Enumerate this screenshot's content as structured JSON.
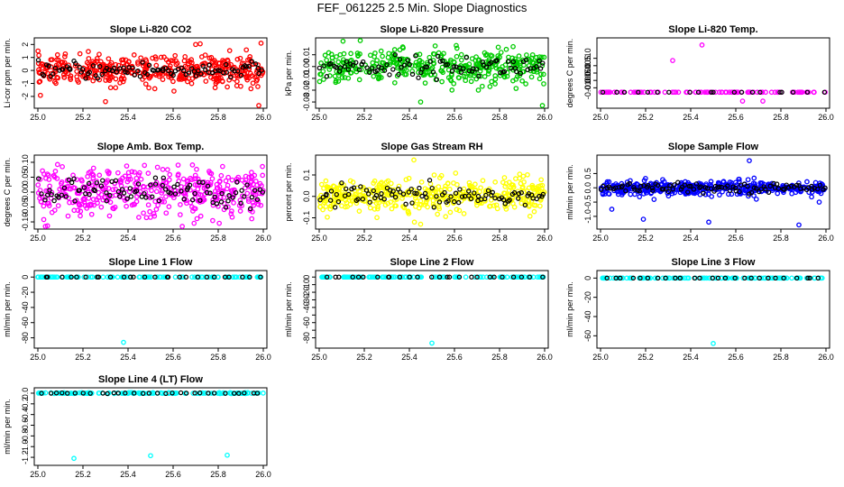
{
  "figure_title": "FEF_061225  2.5 Min. Slope Diagnostics",
  "chart_data": [
    {
      "type": "scatter",
      "title": "Slope Li-820 CO2",
      "ylabel": "Li-cor ppm per min.",
      "xlim": [
        25.0,
        26.0
      ],
      "ylim": [
        -2.7,
        2.3
      ],
      "xticks": [
        25.0,
        25.2,
        25.4,
        25.6,
        25.8,
        26.0
      ],
      "xtick_labels": [
        "25.0",
        "25.2",
        "25.4",
        "25.6",
        "25.8",
        "26.0"
      ],
      "yticks": [
        -2,
        -1,
        0,
        1,
        2
      ],
      "ytick_labels": [
        "-2",
        "-1",
        "0",
        "1",
        "2"
      ],
      "spread": 0.55,
      "n": 420,
      "outliers": [
        [
          25.3,
          -2.4
        ],
        [
          25.98,
          -2.7
        ],
        [
          25.99,
          2.1
        ],
        [
          25.7,
          2.0
        ],
        [
          25.72,
          2.05
        ]
      ],
      "series": [
        {
          "name": "colored",
          "color": "#ff0000"
        },
        {
          "name": "black",
          "color": "#000000"
        }
      ]
    },
    {
      "type": "scatter",
      "title": "Slope Li-820 Pressure",
      "ylabel": "kPa per min.",
      "xlim": [
        25.0,
        26.0
      ],
      "ylim": [
        -0.033,
        0.022
      ],
      "xticks": [
        25.0,
        25.2,
        25.4,
        25.6,
        25.8,
        26.0
      ],
      "xtick_labels": [
        "25.0",
        "25.2",
        "25.4",
        "25.6",
        "25.8",
        "26.0"
      ],
      "yticks": [
        -0.03,
        -0.02,
        -0.01,
        0.0,
        0.01
      ],
      "ytick_labels": [
        "-0.03",
        "-0.02",
        "-0.01",
        "0.00",
        "0.01"
      ],
      "spread": 0.007,
      "n": 400,
      "outliers": [
        [
          25.45,
          -0.03
        ],
        [
          25.99,
          -0.033
        ]
      ],
      "series": [
        {
          "name": "colored",
          "color": "#00cc00"
        },
        {
          "name": "black",
          "color": "#000000"
        }
      ]
    },
    {
      "type": "scatter",
      "title": "Slope Li-820 Temp.",
      "ylabel": "degrees C per min.",
      "xlim": [
        25.0,
        26.0
      ],
      "ylim": [
        -0.022,
        0.022
      ],
      "xticks": [
        25.0,
        25.2,
        25.4,
        25.6,
        25.8,
        26.0
      ],
      "xtick_labels": [
        "25.0",
        "25.2",
        "25.4",
        "25.6",
        "25.8",
        "26.0"
      ],
      "yticks": [
        -0.01,
        -0.005,
        0.0,
        0.005,
        0.01
      ],
      "ytick_labels": [
        "-0.010",
        "-0.005",
        "0.000",
        "0.005",
        "0.010"
      ],
      "spread": 0,
      "n": 90,
      "flat": -0.013,
      "outliers": [
        [
          25.32,
          0.0085
        ],
        [
          25.45,
          0.019
        ],
        [
          25.72,
          -0.019
        ],
        [
          25.63,
          -0.019
        ]
      ],
      "series": [
        {
          "name": "colored",
          "color": "#ff00ff"
        },
        {
          "name": "black",
          "color": "#000000"
        }
      ]
    },
    {
      "type": "scatter",
      "title": "Slope Amb. Box Temp.",
      "ylabel": "degrees C per min.",
      "xlim": [
        25.0,
        26.0
      ],
      "ylim": [
        -0.115,
        0.115
      ],
      "xticks": [
        25.0,
        25.2,
        25.4,
        25.6,
        25.8,
        26.0
      ],
      "xtick_labels": [
        "25.0",
        "25.2",
        "25.4",
        "25.6",
        "25.8",
        "26.0"
      ],
      "yticks": [
        -0.1,
        -0.05,
        0.0,
        0.05,
        0.1
      ],
      "ytick_labels": [
        "-0.10",
        "-0.05",
        "0.00",
        "0.05",
        "0.10"
      ],
      "spread": 0.04,
      "n": 420,
      "outliers": [],
      "series": [
        {
          "name": "colored",
          "color": "#ff00ff"
        },
        {
          "name": "black",
          "color": "#000000"
        }
      ]
    },
    {
      "type": "scatter",
      "title": "Slope Gas Stream RH",
      "ylabel": "percent per min.",
      "xlim": [
        25.0,
        26.0
      ],
      "ylim": [
        -0.14,
        0.18
      ],
      "xticks": [
        25.0,
        25.2,
        25.4,
        25.6,
        25.8,
        26.0
      ],
      "xtick_labels": [
        "25.0",
        "25.2",
        "25.4",
        "25.6",
        "25.8",
        "26.0"
      ],
      "yticks": [
        -0.1,
        0.0,
        0.1
      ],
      "ytick_labels": [
        "-0.1",
        "0.0",
        "0.1"
      ],
      "spread": 0.04,
      "n": 430,
      "outliers": [
        [
          25.42,
          0.17
        ],
        [
          25.45,
          -0.13
        ]
      ],
      "series": [
        {
          "name": "colored",
          "color": "#ffff00"
        },
        {
          "name": "black",
          "color": "#000000"
        }
      ]
    },
    {
      "type": "scatter",
      "title": "Slope Sample Flow",
      "ylabel": "ml/min per min.",
      "xlim": [
        25.0,
        26.0
      ],
      "ylim": [
        -1.35,
        1.05
      ],
      "xticks": [
        25.0,
        25.2,
        25.4,
        25.6,
        25.8,
        26.0
      ],
      "xtick_labels": [
        "25.0",
        "25.2",
        "25.4",
        "25.6",
        "25.8",
        "26.0"
      ],
      "yticks": [
        -1.0,
        -0.5,
        0.0,
        0.5
      ],
      "ytick_labels": [
        "-1.0",
        "-0.5",
        "0.0",
        "0.5"
      ],
      "spread": 0.12,
      "n": 430,
      "outliers": [
        [
          25.66,
          0.95
        ],
        [
          25.88,
          -1.3
        ],
        [
          25.19,
          -1.1
        ],
        [
          25.48,
          -1.2
        ],
        [
          25.05,
          -0.75
        ],
        [
          25.97,
          -0.5
        ]
      ],
      "series": [
        {
          "name": "colored",
          "color": "#0000ff"
        },
        {
          "name": "black",
          "color": "#000000"
        }
      ]
    },
    {
      "type": "scatter",
      "title": "Slope Line 1 Flow",
      "ylabel": "ml/min per min.",
      "xlim": [
        25.0,
        26.0
      ],
      "ylim": [
        -90,
        5
      ],
      "xticks": [
        25.0,
        25.2,
        25.4,
        25.6,
        25.8,
        26.0
      ],
      "xtick_labels": [
        "25.0",
        "25.2",
        "25.4",
        "25.6",
        "25.8",
        "26.0"
      ],
      "yticks": [
        -80,
        -60,
        -40,
        -20,
        0
      ],
      "ytick_labels": [
        "-80",
        "-60",
        "-40",
        "-20",
        "0"
      ],
      "spread": 0,
      "n": 120,
      "flat": 0,
      "outliers": [
        [
          25.38,
          -86
        ]
      ],
      "series": [
        {
          "name": "colored",
          "color": "#00ffff"
        },
        {
          "name": "black",
          "color": "#000000"
        }
      ]
    },
    {
      "type": "scatter",
      "title": "Slope Line 2 Flow",
      "ylabel": "ml/min per min.",
      "xlim": [
        25.0,
        26.0
      ],
      "ylim": [
        -90,
        5
      ],
      "xticks": [
        25.0,
        25.2,
        25.4,
        25.6,
        25.8,
        26.0
      ],
      "xtick_labels": [
        "25.0",
        "25.2",
        "25.4",
        "25.6",
        "25.8",
        "26.0"
      ],
      "yticks": [
        -80,
        -70,
        -60,
        -50,
        -40,
        -30,
        -20,
        -10,
        0
      ],
      "ytick_labels": [
        "-80",
        "",
        "-60",
        "",
        "-40",
        "-30",
        "-20",
        "-10",
        "0"
      ],
      "spread": 0,
      "n": 120,
      "flat": 0,
      "outliers": [
        [
          25.5,
          -87
        ]
      ],
      "series": [
        {
          "name": "colored",
          "color": "#00ffff"
        },
        {
          "name": "black",
          "color": "#000000"
        }
      ]
    },
    {
      "type": "scatter",
      "title": "Slope Line 3 Flow",
      "ylabel": "ml/min per min.",
      "xlim": [
        25.0,
        26.0
      ],
      "ylim": [
        -70,
        5
      ],
      "xticks": [
        25.0,
        25.2,
        25.4,
        25.6,
        25.8,
        26.0
      ],
      "xtick_labels": [
        "25.0",
        "25.2",
        "25.4",
        "25.6",
        "25.8",
        "26.0"
      ],
      "yticks": [
        -60,
        -40,
        -20,
        0
      ],
      "ytick_labels": [
        "-60",
        "-40",
        "-20",
        "0"
      ],
      "spread": 0,
      "n": 120,
      "flat": 0,
      "outliers": [
        [
          25.5,
          -68
        ]
      ],
      "series": [
        {
          "name": "colored",
          "color": "#00ffff"
        },
        {
          "name": "black",
          "color": "#000000"
        }
      ]
    },
    {
      "type": "scatter",
      "title": "Slope Line 4 (LT) Flow",
      "ylabel": "ml/min per min.",
      "xlim": [
        25.0,
        26.0
      ],
      "ylim": [
        -1.3,
        0.05
      ],
      "xticks": [
        25.0,
        25.2,
        25.4,
        25.6,
        25.8,
        26.0
      ],
      "xtick_labels": [
        "25.0",
        "25.2",
        "25.4",
        "25.6",
        "25.8",
        "26.0"
      ],
      "yticks": [
        -1.2,
        -1.0,
        -0.8,
        -0.6,
        -0.4,
        -0.2,
        0.0
      ],
      "ytick_labels": [
        "-1.2",
        "-1.0",
        "-0.8",
        "-0.6",
        "-0.4",
        "-0.2",
        "0.0"
      ],
      "spread": 0.015,
      "n": 140,
      "flat": 0,
      "outliers": [
        [
          25.16,
          -1.22
        ],
        [
          25.5,
          -1.17
        ],
        [
          25.84,
          -1.16
        ]
      ],
      "series": [
        {
          "name": "colored",
          "color": "#00ffff"
        },
        {
          "name": "black",
          "color": "#000000"
        }
      ]
    }
  ]
}
